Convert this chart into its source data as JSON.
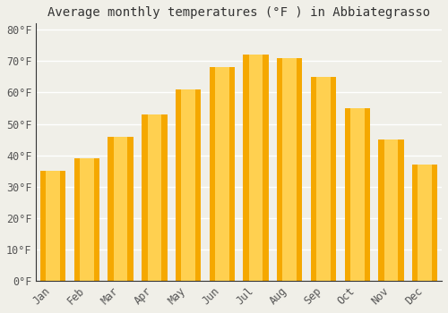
{
  "title": "Average monthly temperatures (°F ) in Abbiategrasso",
  "months": [
    "Jan",
    "Feb",
    "Mar",
    "Apr",
    "May",
    "Jun",
    "Jul",
    "Aug",
    "Sep",
    "Oct",
    "Nov",
    "Dec"
  ],
  "values": [
    35,
    39,
    46,
    53,
    61,
    68,
    72,
    71,
    65,
    55,
    45,
    37
  ],
  "bar_color_outer": "#F5A800",
  "bar_color_inner": "#FFD050",
  "ylim": [
    0,
    82
  ],
  "yticks": [
    0,
    10,
    20,
    30,
    40,
    50,
    60,
    70,
    80
  ],
  "ytick_labels": [
    "0°F",
    "10°F",
    "20°F",
    "30°F",
    "40°F",
    "50°F",
    "60°F",
    "70°F",
    "80°F"
  ],
  "background_color": "#F0EFE8",
  "grid_color": "#FFFFFF",
  "title_fontsize": 10,
  "tick_fontsize": 8.5,
  "font_family": "monospace",
  "tick_color": "#555555",
  "spine_color": "#333333"
}
